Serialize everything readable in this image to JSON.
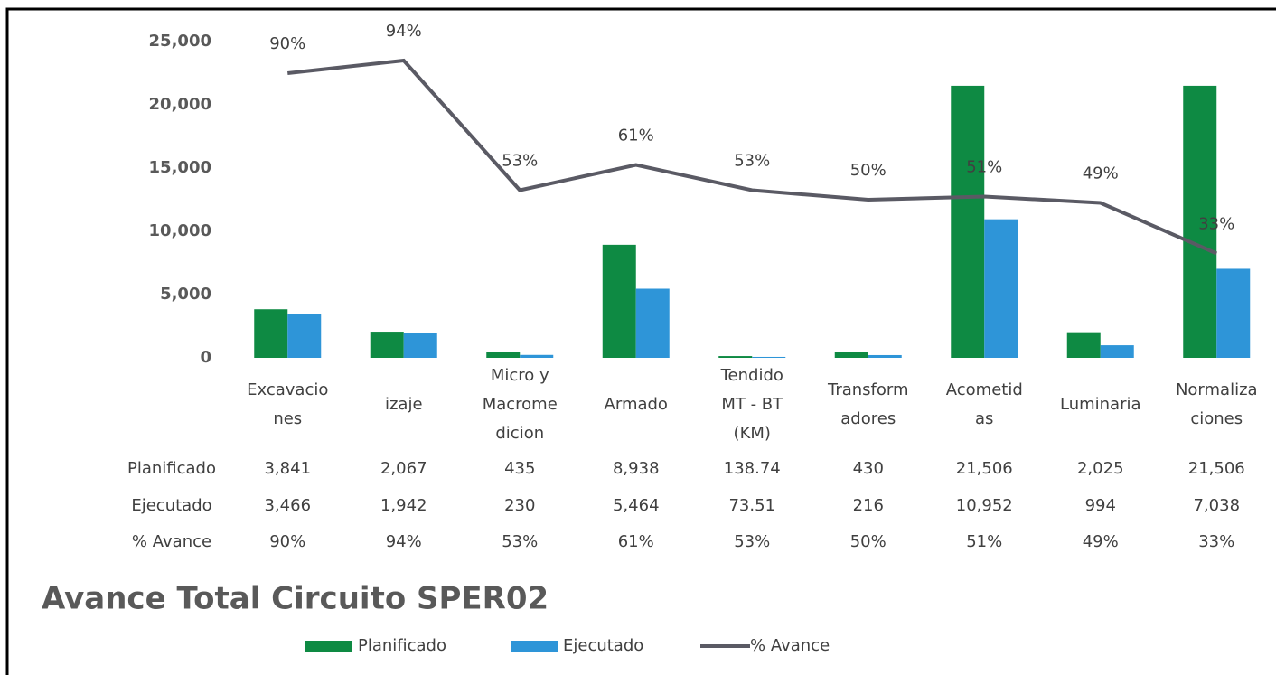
{
  "chart_data": {
    "type": "bar_line",
    "title": "Avance Total Circuito SPER02",
    "categories": [
      [
        "Excavacio",
        "nes"
      ],
      [
        "izaje"
      ],
      [
        "Micro y",
        "Macrome",
        "dicion"
      ],
      [
        "Armado"
      ],
      [
        "Tendido",
        "MT - BT",
        "(KM)"
      ],
      [
        "Transform",
        "adores"
      ],
      [
        "Acometid",
        "as"
      ],
      [
        "Luminaria"
      ],
      [
        "Normaliza",
        "ciones"
      ]
    ],
    "series": [
      {
        "name": "Planificado",
        "color": "#0e8a43",
        "values": [
          3841,
          2067,
          435,
          8938,
          138.74,
          430,
          21506,
          2025,
          21506
        ],
        "value_labels": [
          "3,841",
          "2,067",
          "435",
          "8,938",
          "138.74",
          "430",
          "21,506",
          "2,025",
          "21,506"
        ]
      },
      {
        "name": "Ejecutado",
        "color": "#2e95d8",
        "values": [
          3466,
          1942,
          230,
          5464,
          73.51,
          216,
          10952,
          994,
          7038
        ],
        "value_labels": [
          "3,466",
          "1,942",
          "230",
          "5,464",
          "73.51",
          "216",
          "10,952",
          "994",
          "7,038"
        ]
      },
      {
        "name": "% Avance",
        "color": "#5a5a64",
        "axis": "y2",
        "values": [
          90,
          94,
          53,
          61,
          53,
          50,
          51,
          49,
          33
        ],
        "value_labels": [
          "90%",
          "94%",
          "53%",
          "61%",
          "53%",
          "50%",
          "51%",
          "49%",
          "33%"
        ]
      }
    ],
    "ylim": [
      0,
      25000
    ],
    "yticks": [
      0,
      {
        "value": 5000,
        "label": "5,000"
      },
      {
        "value": 10000,
        "label": "10,000"
      },
      {
        "value": 15000,
        "label": "15,000"
      },
      {
        "value": 20000,
        "label": "20,000"
      },
      {
        "value": 25000,
        "label": "25,000"
      }
    ],
    "y2lim": [
      0,
      100
    ]
  }
}
